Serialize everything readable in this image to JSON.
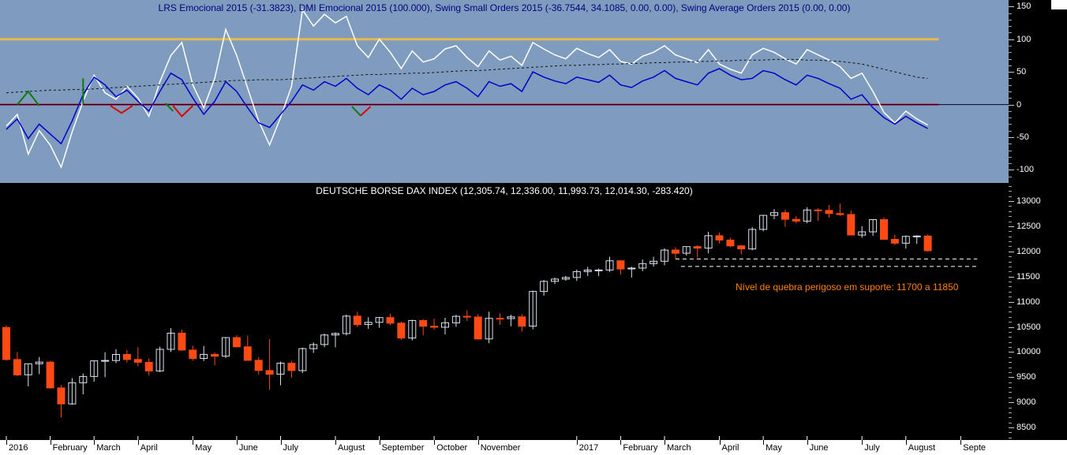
{
  "chart_data": [
    {
      "type": "line",
      "panel": "indicator",
      "title": "LRS Emocional 2015 (-31.3823), DMI Emocional 2015 (100.000), Swing Small Orders 2015 (-36.7544, 34.1085, 0.00, 0.00), Swing Average Orders 2015 (0.00, 0.00)",
      "title_color": "#00007f",
      "background": "#7f9cbe",
      "ylim": [
        -120,
        160
      ],
      "yticks": [
        150,
        100,
        50,
        0,
        -50,
        -100
      ],
      "grid": false,
      "legend": "none",
      "hlines": [
        {
          "value": 100,
          "color": "#e8b84b",
          "width": 3,
          "to_index": 85
        },
        {
          "value": 0,
          "color": "#dd0000",
          "width": 2,
          "to_index": 85
        },
        {
          "value": 0,
          "color": "#00003c",
          "width": 1,
          "full": true
        }
      ],
      "series": [
        {
          "name": "LRS Emocional 2015",
          "color": "#ffffff",
          "width": 1.5,
          "dashed": false,
          "values": [
            -33,
            -15,
            -76,
            -40,
            -62,
            -96,
            -42,
            5,
            45,
            18,
            8,
            28,
            10,
            -18,
            35,
            75,
            95,
            30,
            -5,
            40,
            115,
            75,
            25,
            -25,
            -62,
            -20,
            28,
            145,
            120,
            138,
            125,
            135,
            90,
            72,
            100,
            80,
            55,
            82,
            65,
            70,
            85,
            90,
            72,
            58,
            82,
            68,
            74,
            60,
            95,
            85,
            76,
            70,
            86,
            78,
            72,
            84,
            66,
            62,
            74,
            80,
            90,
            76,
            70,
            64,
            84,
            62,
            54,
            48,
            76,
            86,
            80,
            70,
            62,
            84,
            76,
            68,
            58,
            40,
            48,
            20,
            -12,
            -28,
            -10,
            -22,
            -31.38
          ]
        },
        {
          "name": "Swing Small Orders 2015",
          "color": "#0000cc",
          "width": 1.5,
          "dashed": false,
          "values": [
            -38,
            -22,
            -52,
            -30,
            -45,
            -60,
            -25,
            15,
            42,
            30,
            12,
            22,
            5,
            -10,
            20,
            48,
            38,
            10,
            -15,
            5,
            35,
            20,
            -5,
            -28,
            -35,
            -15,
            5,
            30,
            22,
            35,
            28,
            40,
            25,
            15,
            30,
            22,
            8,
            25,
            15,
            20,
            30,
            35,
            25,
            12,
            35,
            28,
            32,
            20,
            50,
            42,
            36,
            32,
            42,
            38,
            34,
            45,
            30,
            26,
            36,
            42,
            52,
            40,
            35,
            30,
            48,
            55,
            45,
            38,
            40,
            52,
            48,
            38,
            30,
            45,
            40,
            32,
            25,
            8,
            15,
            -5,
            -20,
            -30,
            -18,
            -28,
            -36.75
          ]
        },
        {
          "name": "Swing Average Orders 2015",
          "color": "#111111",
          "width": 1,
          "dashed": true,
          "values": [
            18,
            19,
            20,
            21,
            22,
            22,
            23,
            23,
            24,
            25,
            26,
            27,
            28,
            29,
            30,
            31,
            32,
            33,
            34,
            35,
            36,
            37,
            37,
            38,
            38,
            38,
            39,
            40,
            41,
            42,
            43,
            44,
            45,
            46,
            46,
            47,
            47,
            48,
            48,
            49,
            50,
            51,
            52,
            52,
            53,
            54,
            55,
            56,
            57,
            58,
            59,
            60,
            60,
            61,
            61,
            62,
            62,
            63,
            63,
            64,
            64,
            65,
            65,
            66,
            66,
            67,
            67,
            68,
            68,
            68,
            69,
            69,
            69,
            68,
            68,
            67,
            66,
            64,
            62,
            58,
            54,
            50,
            46,
            42,
            40
          ]
        }
      ],
      "markers": [
        {
          "color": "#0e7a0e",
          "points": [
            [
              1,
              0
            ],
            [
              2,
              20
            ],
            [
              3,
              -2
            ]
          ]
        },
        {
          "color": "#0e7a0e",
          "points": [
            [
              7,
              40
            ],
            [
              7,
              0
            ]
          ]
        },
        {
          "color": "#dd0000",
          "points": [
            [
              9.5,
              -2
            ],
            [
              10.5,
              -13
            ],
            [
              11.5,
              -2
            ]
          ]
        },
        {
          "color": "#0e7a0e",
          "points": [
            [
              14.5,
              2
            ],
            [
              15.2,
              -10
            ]
          ]
        },
        {
          "color": "#dd0000",
          "points": [
            [
              15.2,
              -2
            ],
            [
              16,
              -18
            ],
            [
              17,
              -2
            ]
          ]
        },
        {
          "color": "#0e7a0e",
          "points": [
            [
              31.5,
              -3
            ],
            [
              32.3,
              -17
            ]
          ]
        },
        {
          "color": "#dd0000",
          "points": [
            [
              32.3,
              -17
            ],
            [
              33.2,
              -3
            ]
          ]
        }
      ]
    },
    {
      "type": "candlestick",
      "panel": "price",
      "title": "DEUTSCHE BORSE DAX INDEX (12,305.74, 12,336.00, 11,993.73, 12,014.30, -283.420)",
      "title_color": "#ffffff",
      "background": "#000000",
      "up_color": "#d8e2ee",
      "down_color": "#ff4a14",
      "ylim": [
        8249,
        13361
      ],
      "yticks": [
        13000,
        12500,
        12000,
        11500,
        11000,
        10500,
        10000,
        9500,
        9000,
        8500
      ],
      "grid": false,
      "support_lines": [
        {
          "value": 11850,
          "from_index": 61,
          "to_index": 88.5,
          "color": "#ffffff"
        },
        {
          "value": 11700,
          "from_index": 61.5,
          "to_index": 88.5,
          "color": "#ffffff"
        }
      ],
      "annotation": {
        "text": "Nível de quebra perigoso em suporte: 11700 a 11850",
        "color": "#ff8000",
        "index": 66.5,
        "value": 11400
      },
      "x_labels": [
        {
          "label": "2016",
          "index": 0
        },
        {
          "label": "February",
          "index": 4
        },
        {
          "label": "March",
          "index": 8
        },
        {
          "label": "April",
          "index": 12
        },
        {
          "label": "May",
          "index": 17
        },
        {
          "label": "June",
          "index": 21
        },
        {
          "label": "July",
          "index": 25
        },
        {
          "label": "August",
          "index": 30
        },
        {
          "label": "September",
          "index": 34
        },
        {
          "label": "October",
          "index": 39
        },
        {
          "label": "November",
          "index": 43
        },
        {
          "label": "2017",
          "index": 52
        },
        {
          "label": "February",
          "index": 56
        },
        {
          "label": "March",
          "index": 60
        },
        {
          "label": "April",
          "index": 65
        },
        {
          "label": "May",
          "index": 69
        },
        {
          "label": "June",
          "index": 73
        },
        {
          "label": "July",
          "index": 78
        },
        {
          "label": "August",
          "index": 82
        },
        {
          "label": "Septe",
          "index": 87
        }
      ],
      "candles": [
        [
          10486,
          10530,
          9828,
          9849
        ],
        [
          9850,
          10000,
          9521,
          9545
        ],
        [
          9545,
          9765,
          9315,
          9765
        ],
        [
          9765,
          9900,
          9560,
          9798
        ],
        [
          9798,
          9820,
          9270,
          9286
        ],
        [
          9286,
          9340,
          8699,
          8968
        ],
        [
          8968,
          9480,
          8950,
          9388
        ],
        [
          9388,
          9573,
          9157,
          9513
        ],
        [
          9513,
          9830,
          9410,
          9824
        ],
        [
          9824,
          9995,
          9499,
          9831
        ],
        [
          9831,
          10055,
          9780,
          9951
        ],
        [
          9951,
          10035,
          9792,
          9851
        ],
        [
          9851,
          10093,
          9715,
          9795
        ],
        [
          9795,
          9870,
          9530,
          9622
        ],
        [
          9622,
          10105,
          9600,
          10052
        ],
        [
          10052,
          10474,
          10000,
          10373
        ],
        [
          10373,
          10445,
          10023,
          10038
        ],
        [
          10038,
          10123,
          9830,
          9870
        ],
        [
          9870,
          10120,
          9820,
          9952
        ],
        [
          9952,
          9990,
          9737,
          9916
        ],
        [
          9916,
          10290,
          9880,
          10286
        ],
        [
          10286,
          10333,
          10091,
          10103
        ],
        [
          10103,
          10327,
          9834,
          9834
        ],
        [
          9834,
          9900,
          9550,
          9631
        ],
        [
          9631,
          10257,
          9249,
          9557
        ],
        [
          9557,
          9810,
          9337,
          9776
        ],
        [
          9776,
          9820,
          9490,
          9630
        ],
        [
          9630,
          10087,
          9580,
          10067
        ],
        [
          10067,
          10190,
          9980,
          10147
        ],
        [
          10147,
          10365,
          10095,
          10337
        ],
        [
          10337,
          10390,
          10092,
          10367
        ],
        [
          10367,
          10743,
          10330,
          10713
        ],
        [
          10713,
          10802,
          10498,
          10544
        ],
        [
          10544,
          10690,
          10460,
          10588
        ],
        [
          10588,
          10694,
          10480,
          10684
        ],
        [
          10684,
          10762,
          10530,
          10573
        ],
        [
          10573,
          10601,
          10240,
          10276
        ],
        [
          10276,
          10640,
          10230,
          10626
        ],
        [
          10626,
          10650,
          10330,
          10511
        ],
        [
          10511,
          10665,
          10440,
          10490
        ],
        [
          10490,
          10680,
          10349,
          10580
        ],
        [
          10580,
          10737,
          10500,
          10710
        ],
        [
          10710,
          10827,
          10620,
          10696
        ],
        [
          10696,
          10750,
          10259,
          10259
        ],
        [
          10259,
          10800,
          10174,
          10668
        ],
        [
          10668,
          10770,
          10540,
          10664
        ],
        [
          10664,
          10740,
          10510,
          10699
        ],
        [
          10699,
          10750,
          10402,
          10513
        ],
        [
          10513,
          11220,
          10450,
          11203
        ],
        [
          11203,
          11430,
          11120,
          11404
        ],
        [
          11404,
          11481,
          11350,
          11450
        ],
        [
          11450,
          11510,
          11415,
          11481
        ],
        [
          11481,
          11637,
          11414,
          11599
        ],
        [
          11599,
          11693,
          11509,
          11629
        ],
        [
          11629,
          11660,
          11511,
          11630
        ],
        [
          11630,
          11893,
          11594,
          11814
        ],
        [
          11814,
          11826,
          11535,
          11651
        ],
        [
          11651,
          11698,
          11479,
          11667
        ],
        [
          11667,
          11838,
          11607,
          11757
        ],
        [
          11757,
          11893,
          11697,
          11804
        ],
        [
          11804,
          12060,
          11722,
          12027
        ],
        [
          12027,
          12083,
          11850,
          11963
        ],
        [
          11963,
          12095,
          11917,
          12095
        ],
        [
          12095,
          12122,
          11878,
          12064
        ],
        [
          12064,
          12390,
          11963,
          12312
        ],
        [
          12312,
          12375,
          12156,
          12225
        ],
        [
          12225,
          12270,
          12085,
          12109
        ],
        [
          12109,
          12121,
          11941,
          12049
        ],
        [
          12049,
          12486,
          12022,
          12438
        ],
        [
          12438,
          12721,
          12400,
          12717
        ],
        [
          12717,
          12842,
          12640,
          12770
        ],
        [
          12770,
          12832,
          12490,
          12638
        ],
        [
          12638,
          12700,
          12560,
          12602
        ],
        [
          12602,
          12878,
          12560,
          12823
        ],
        [
          12823,
          12857,
          12608,
          12816
        ],
        [
          12816,
          12921,
          12670,
          12753
        ],
        [
          12753,
          12951,
          12704,
          12733
        ],
        [
          12733,
          12810,
          12319,
          12325
        ],
        [
          12325,
          12500,
          12271,
          12389
        ],
        [
          12389,
          12639,
          12310,
          12632
        ],
        [
          12632,
          12677,
          12240,
          12240
        ],
        [
          12240,
          12330,
          12125,
          12163
        ],
        [
          12163,
          12318,
          12055,
          12298
        ],
        [
          12298,
          12320,
          12150,
          12306
        ],
        [
          12305.74,
          12336.0,
          11993.73,
          12014.3
        ]
      ]
    }
  ]
}
